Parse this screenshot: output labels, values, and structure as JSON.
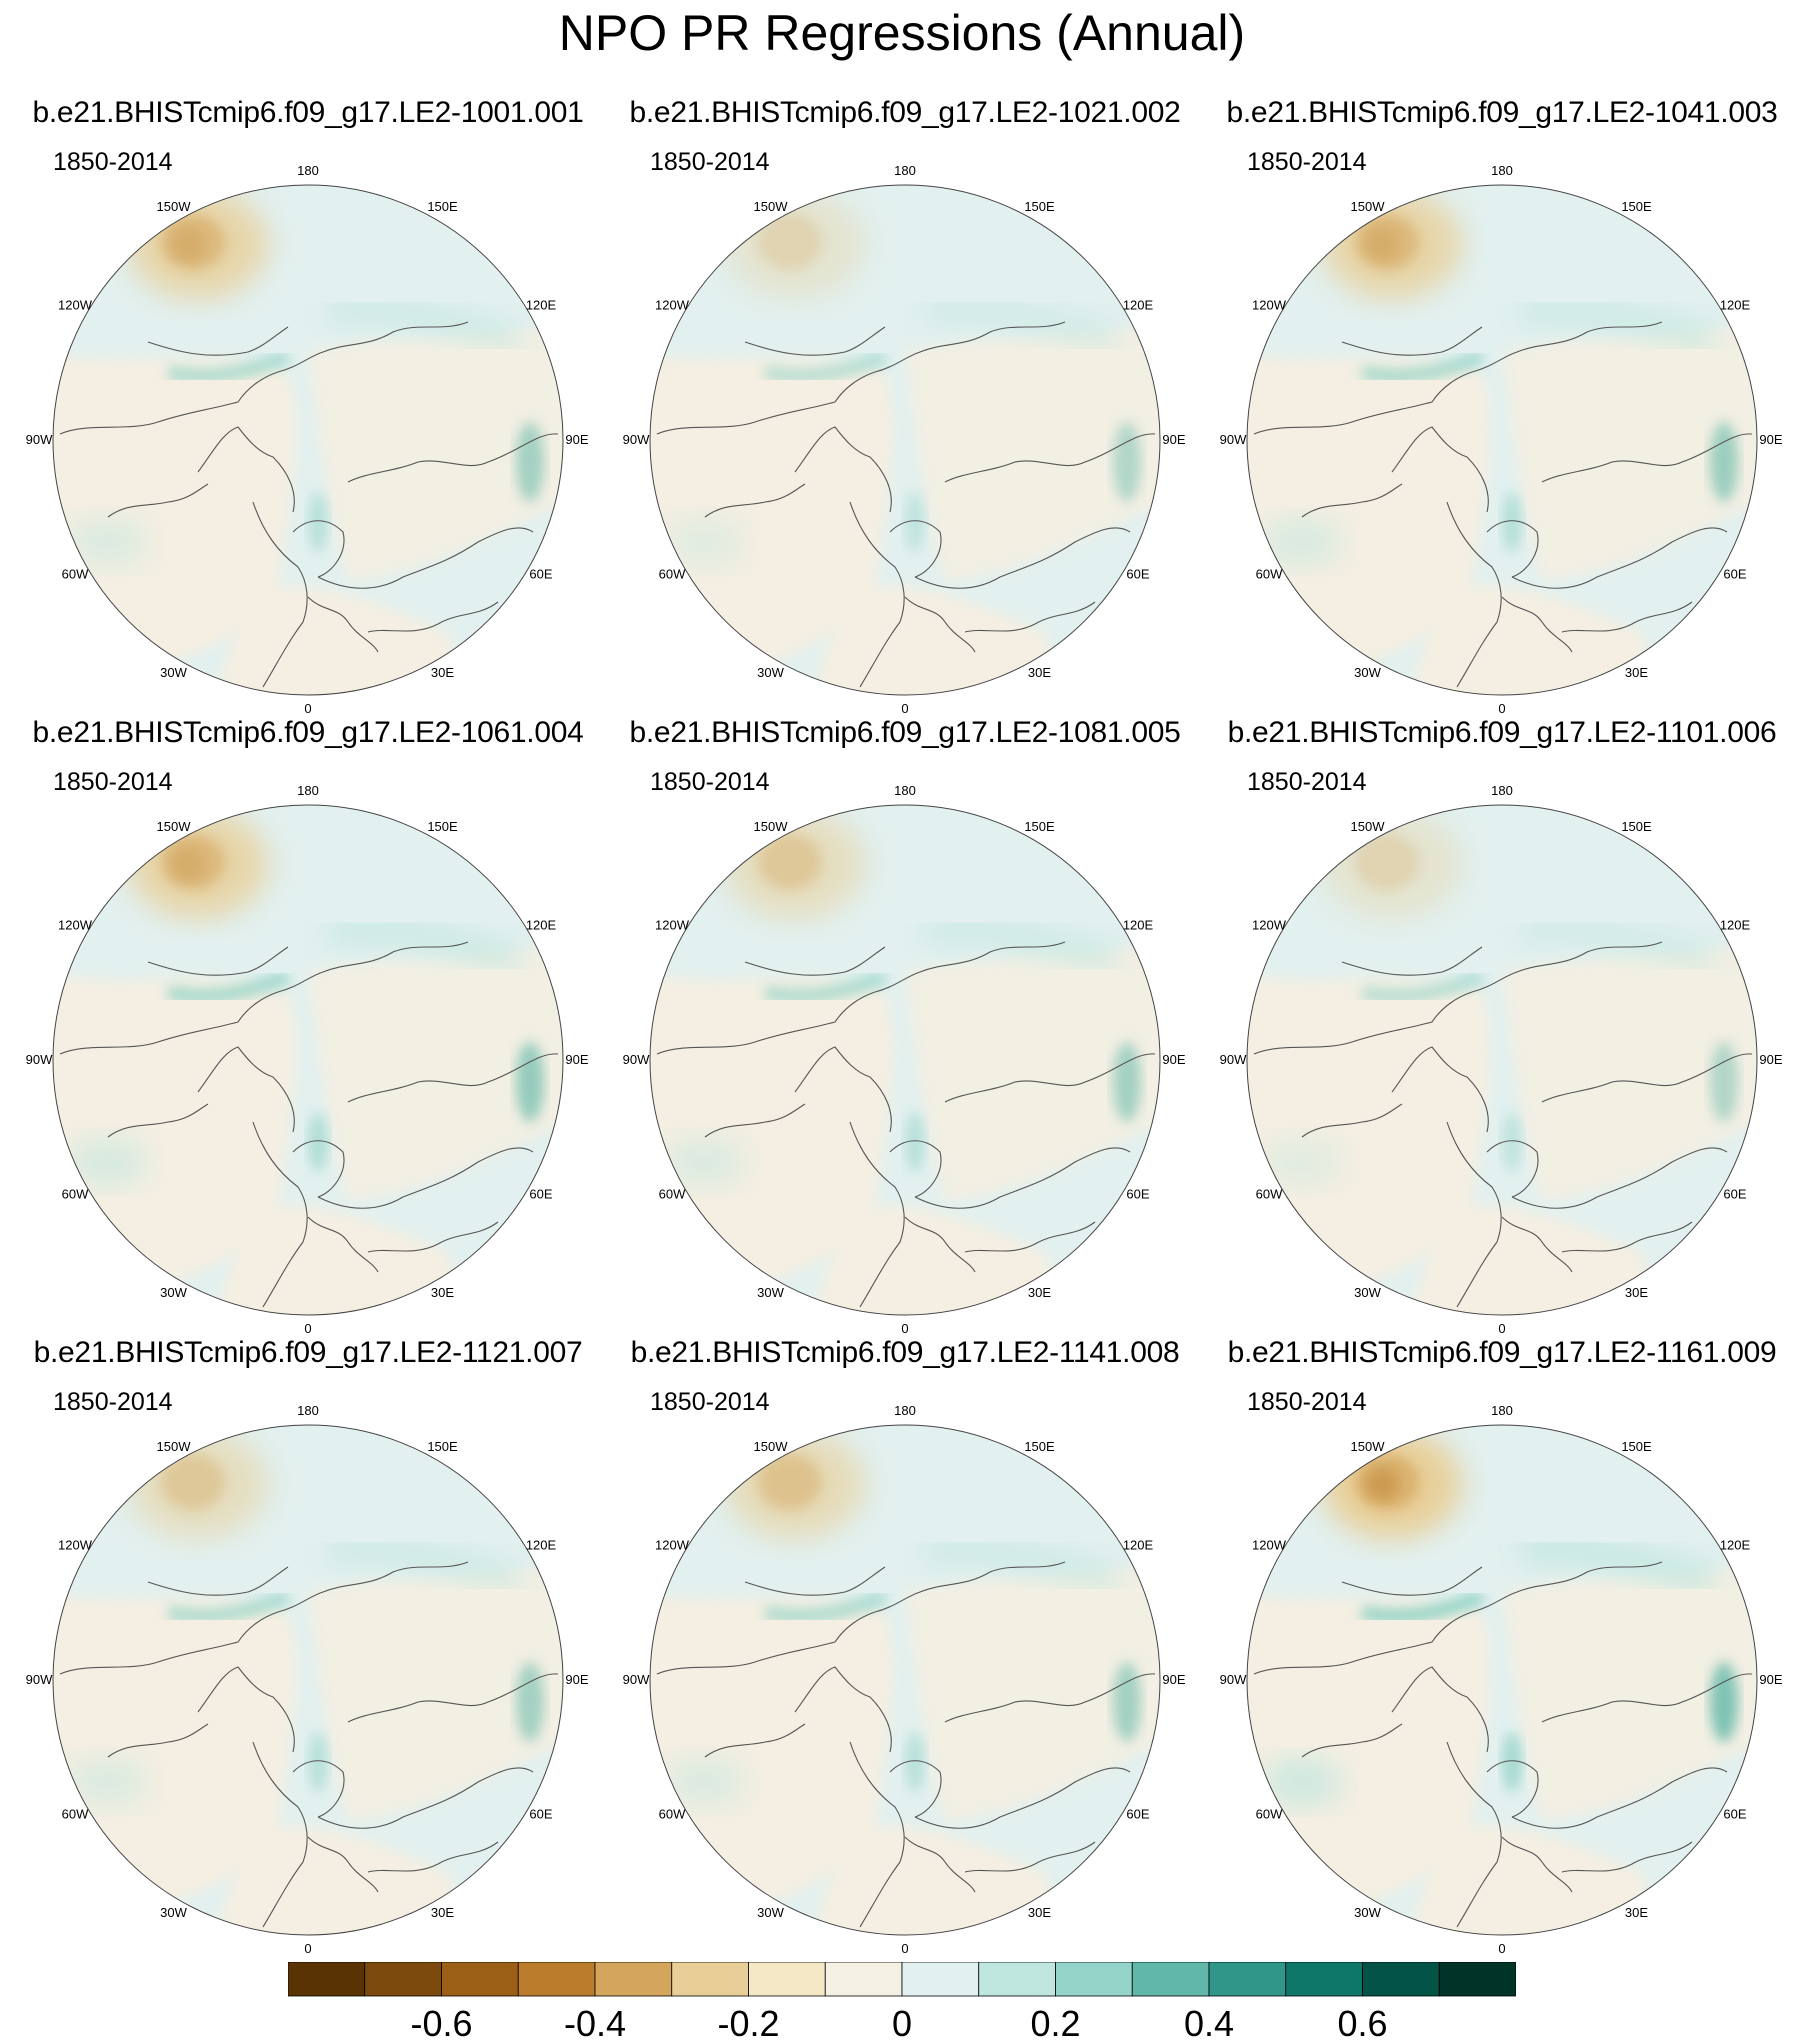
{
  "title": "NPO PR Regressions (Annual)",
  "period": "1850-2014",
  "lon_labels": [
    "180",
    "150E",
    "120E",
    "90E",
    "60E",
    "30E",
    "0",
    "30W",
    "60W",
    "90W",
    "120W",
    "150W"
  ],
  "panels": [
    {
      "name": "b.e21.BHISTcmip6.f09_g17.LE2-1001.001",
      "pacific_dry_strength": 0.45,
      "asia_wet_strength": 0.25
    },
    {
      "name": "b.e21.BHISTcmip6.f09_g17.LE2-1021.002",
      "pacific_dry_strength": 0.2,
      "asia_wet_strength": 0.15
    },
    {
      "name": "b.e21.BHISTcmip6.f09_g17.LE2-1041.003",
      "pacific_dry_strength": 0.45,
      "asia_wet_strength": 0.3
    },
    {
      "name": "b.e21.BHISTcmip6.f09_g17.LE2-1061.004",
      "pacific_dry_strength": 0.45,
      "asia_wet_strength": 0.35
    },
    {
      "name": "b.e21.BHISTcmip6.f09_g17.LE2-1081.005",
      "pacific_dry_strength": 0.3,
      "asia_wet_strength": 0.25
    },
    {
      "name": "b.e21.BHISTcmip6.f09_g17.LE2-1101.006",
      "pacific_dry_strength": 0.2,
      "asia_wet_strength": 0.15
    },
    {
      "name": "b.e21.BHISTcmip6.f09_g17.LE2-1121.007",
      "pacific_dry_strength": 0.3,
      "asia_wet_strength": 0.25
    },
    {
      "name": "b.e21.BHISTcmip6.f09_g17.LE2-1141.008",
      "pacific_dry_strength": 0.35,
      "asia_wet_strength": 0.25
    },
    {
      "name": "b.e21.BHISTcmip6.f09_g17.LE2-1161.009",
      "pacific_dry_strength": 0.55,
      "asia_wet_strength": 0.5
    }
  ],
  "colorbar": {
    "colors": [
      "#5a3305",
      "#7c4a0c",
      "#9c5f16",
      "#bb7c2b",
      "#d4a55c",
      "#e8cf98",
      "#f4e8c7",
      "#f4f0e4",
      "#e2f0ef",
      "#bfe6df",
      "#95d4c8",
      "#62b8a8",
      "#31968a",
      "#0f766a",
      "#035447",
      "#013327"
    ],
    "tick_labels": [
      "-0.6",
      "-0.4",
      "-0.2",
      "0",
      "0.2",
      "0.4",
      "0.6"
    ]
  },
  "colors": {
    "ocean_base": "#e2f0ef",
    "land_base": "#f4efe2",
    "dry": "#d4a55c",
    "wet": "#62b8a8"
  }
}
